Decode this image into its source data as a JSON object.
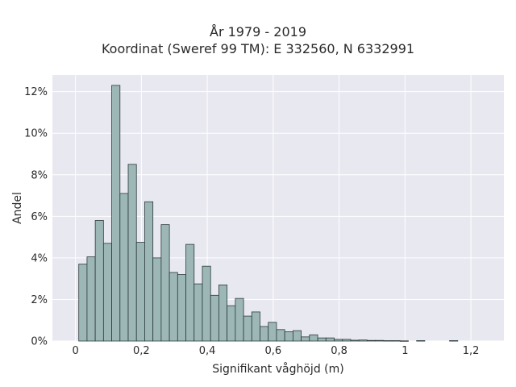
{
  "chart_data": {
    "type": "bar",
    "title": "År 1979 - 2019",
    "subtitle": "Koordinat (Sweref 99 TM): E 332560, N 6332991",
    "xlabel": "Signifikant våghöjd (m)",
    "ylabel": "Andel",
    "xlim": [
      -0.07,
      1.3
    ],
    "ylim": [
      0,
      12.8
    ],
    "x_ticks": [
      0,
      0.2,
      0.4,
      0.6,
      0.8,
      1,
      1.2
    ],
    "x_tick_labels": [
      "0",
      "0,2",
      "0,4",
      "0,6",
      "0,8",
      "1",
      "1,2"
    ],
    "y_ticks": [
      0,
      2,
      4,
      6,
      8,
      10,
      12
    ],
    "y_tick_labels": [
      "0%",
      "2%",
      "4%",
      "6%",
      "8%",
      "10%",
      "12%"
    ],
    "bin_width": 0.025,
    "bin_starts": [
      0.01,
      0.035,
      0.06,
      0.085,
      0.11,
      0.135,
      0.16,
      0.185,
      0.21,
      0.235,
      0.26,
      0.285,
      0.31,
      0.335,
      0.36,
      0.385,
      0.41,
      0.435,
      0.46,
      0.485,
      0.51,
      0.535,
      0.56,
      0.585,
      0.61,
      0.635,
      0.66,
      0.685,
      0.71,
      0.735,
      0.76,
      0.785,
      0.81,
      0.835,
      0.86,
      0.885,
      0.91,
      0.935,
      0.96,
      0.985,
      1.01,
      1.035,
      1.06,
      1.085,
      1.11,
      1.135,
      1.16,
      1.185,
      1.21,
      1.235
    ],
    "values": [
      3.7,
      4.05,
      5.8,
      4.7,
      12.3,
      7.1,
      8.5,
      4.75,
      6.7,
      4.0,
      5.6,
      3.3,
      3.2,
      4.65,
      2.75,
      3.6,
      2.2,
      2.7,
      1.7,
      2.05,
      1.2,
      1.4,
      0.7,
      0.9,
      0.55,
      0.45,
      0.5,
      0.2,
      0.3,
      0.15,
      0.15,
      0.08,
      0.08,
      0.04,
      0.05,
      0.03,
      0.03,
      0.02,
      0.02,
      0.01,
      0.0,
      0.02,
      0.0,
      0.0,
      0.0,
      0.02,
      0.0,
      0.0,
      0.0,
      0.0
    ],
    "bar_color": "#9db7b7",
    "edge_color": "#2d3b3b",
    "background_color": "#e8e8f0",
    "grid": true
  }
}
